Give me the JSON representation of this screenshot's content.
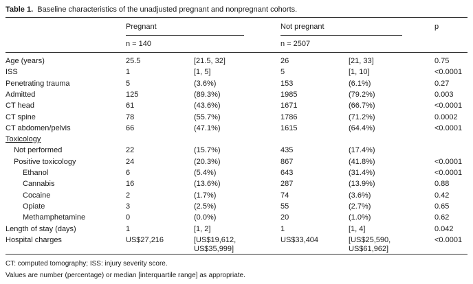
{
  "table": {
    "caption_label": "Table 1.",
    "caption_text": "Baseline characteristics of the unadjusted pregnant and nonpregnant cohorts.",
    "headers": {
      "pregnant": "Pregnant",
      "not_pregnant": "Not pregnant",
      "p": "p",
      "pregnant_n": "n = 140",
      "not_pregnant_n": "n = 2507"
    },
    "rows": [
      {
        "label": "Age (years)",
        "indent": 0,
        "v1": "25.5",
        "v2": "[21.5, 32]",
        "v3": "26",
        "v4": "[21, 33]",
        "p": "0.75"
      },
      {
        "label": "ISS",
        "indent": 0,
        "v1": "1",
        "v2": "[1, 5]",
        "v3": "5",
        "v4": "[1, 10]",
        "p": "<0.0001"
      },
      {
        "label": "Penetrating trauma",
        "indent": 0,
        "v1": "5",
        "v2": "(3.6%)",
        "v3": "153",
        "v4": "(6.1%)",
        "p": "0.27"
      },
      {
        "label": "Admitted",
        "indent": 0,
        "v1": "125",
        "v2": "(89.3%)",
        "v3": "1985",
        "v4": "(79.2%)",
        "p": "0.003"
      },
      {
        "label": "CT head",
        "indent": 0,
        "v1": "61",
        "v2": "(43.6%)",
        "v3": "1671",
        "v4": "(66.7%)",
        "p": "<0.0001"
      },
      {
        "label": "CT spine",
        "indent": 0,
        "v1": "78",
        "v2": "(55.7%)",
        "v3": "1786",
        "v4": "(71.2%)",
        "p": "0.0002"
      },
      {
        "label": "CT abdomen/pelvis",
        "indent": 0,
        "v1": "66",
        "v2": "(47.1%)",
        "v3": "1615",
        "v4": "(64.4%)",
        "p": "<0.0001"
      },
      {
        "label": "Toxicology",
        "indent": 0,
        "underline": true,
        "v1": "",
        "v2": "",
        "v3": "",
        "v4": "",
        "p": ""
      },
      {
        "label": "Not performed",
        "indent": 1,
        "v1": "22",
        "v2": "(15.7%)",
        "v3": "435",
        "v4": "(17.4%)",
        "p": ""
      },
      {
        "label": "Positive toxicology",
        "indent": 1,
        "v1": "24",
        "v2": "(20.3%)",
        "v3": "867",
        "v4": "(41.8%)",
        "p": "<0.0001"
      },
      {
        "label": "Ethanol",
        "indent": 2,
        "v1": "6",
        "v2": "(5.4%)",
        "v3": "643",
        "v4": "(31.4%)",
        "p": "<0.0001"
      },
      {
        "label": "Cannabis",
        "indent": 2,
        "v1": "16",
        "v2": "(13.6%)",
        "v3": "287",
        "v4": "(13.9%)",
        "p": "0.88"
      },
      {
        "label": "Cocaine",
        "indent": 2,
        "v1": "2",
        "v2": "(1.7%)",
        "v3": "74",
        "v4": "(3.6%)",
        "p": "0.42"
      },
      {
        "label": "Opiate",
        "indent": 2,
        "v1": "3",
        "v2": "(2.5%)",
        "v3": "55",
        "v4": "(2.7%)",
        "p": "0.65"
      },
      {
        "label": "Methamphetamine",
        "indent": 2,
        "v1": "0",
        "v2": "(0.0%)",
        "v3": "20",
        "v4": "(1.0%)",
        "p": "0.62"
      },
      {
        "label": "Length of stay (days)",
        "indent": 0,
        "v1": "1",
        "v2": "[1, 2]",
        "v3": "1",
        "v4": "[1, 4]",
        "p": "0.042"
      },
      {
        "label": "Hospital charges",
        "indent": 0,
        "v1": "US$27,216",
        "v2": "[US$19,612,",
        "v2b": "US$35,999]",
        "v3": "US$33,404",
        "v4": "[US$25,590,",
        "v4b": "US$61,962]",
        "p": "<0.0001"
      }
    ],
    "footnotes": [
      "CT: computed tomography; ISS: injury severity score.",
      "Values are number (percentage) or median [interquartile range] as appropriate."
    ]
  }
}
